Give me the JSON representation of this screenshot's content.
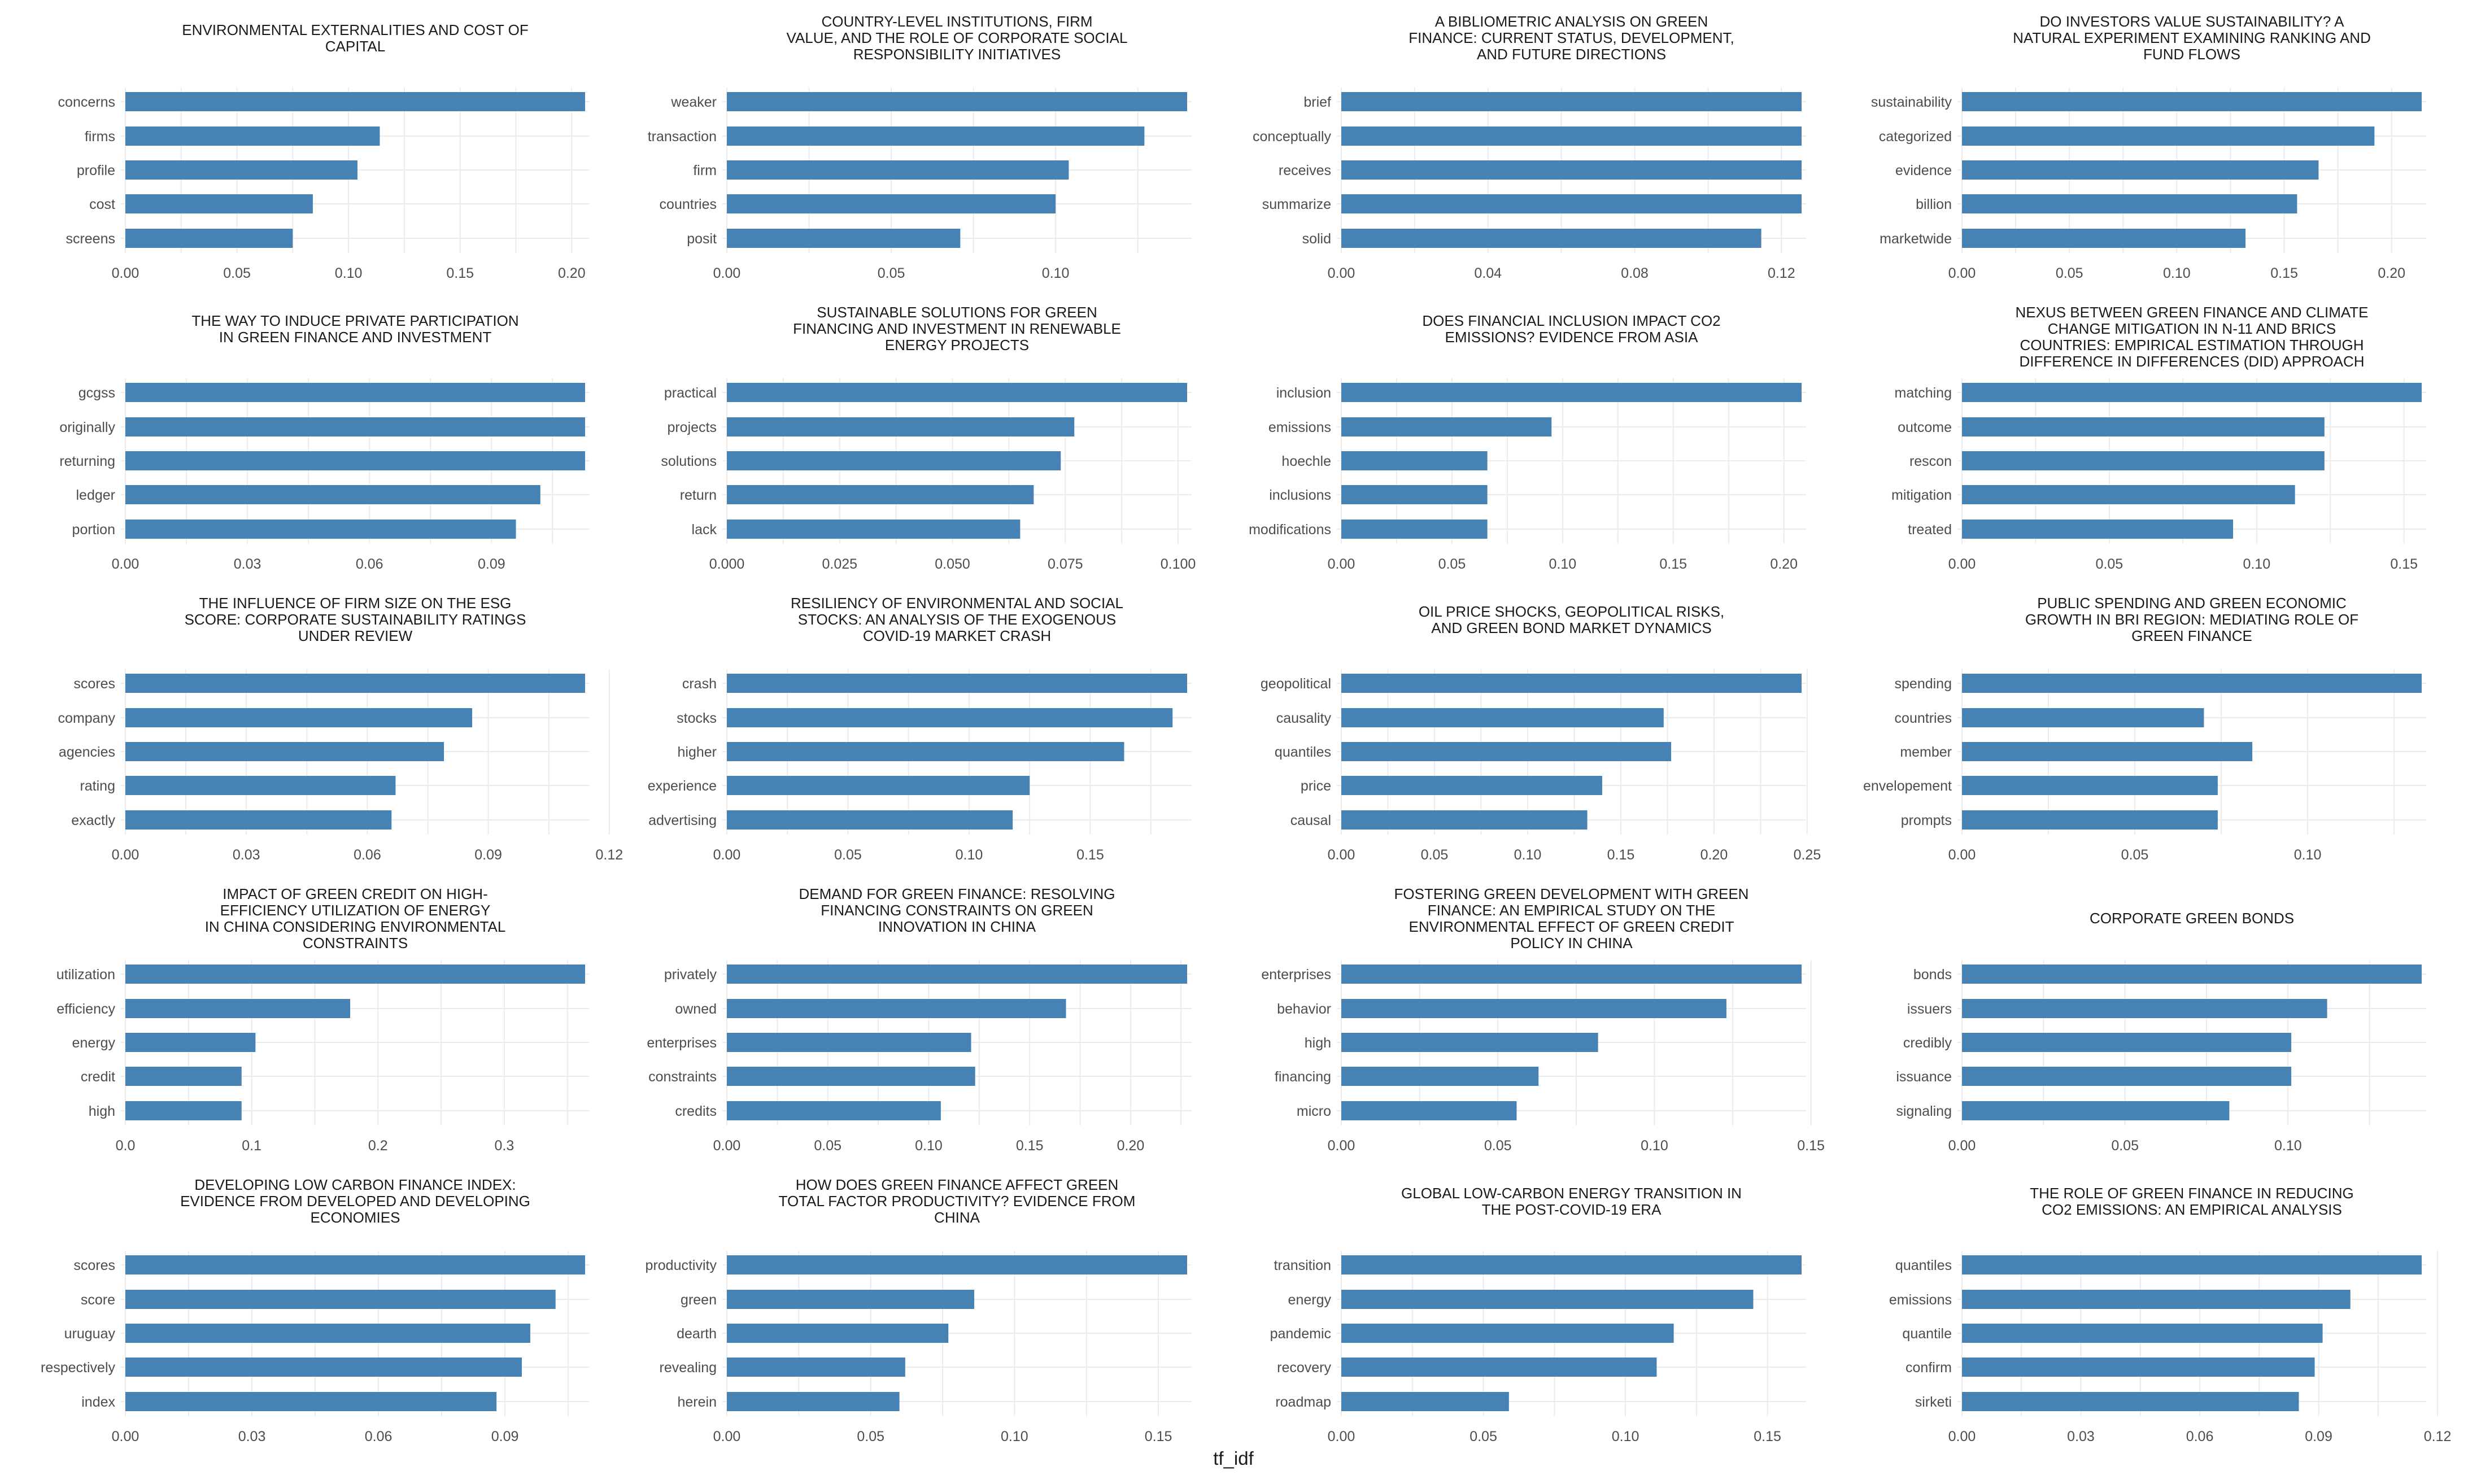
{
  "chart_data": {
    "type": "bar",
    "orientation": "horizontal",
    "grid": true,
    "bar_color": "#4682b4",
    "xlabel": "tf_idf",
    "panels": [
      {
        "title": [
          "ENVIRONMENTAL EXTERNALITIES AND COST OF",
          "CAPITAL"
        ],
        "categories": [
          "concerns",
          "firms",
          "profile",
          "cost",
          "screens"
        ],
        "values": [
          0.206,
          0.114,
          0.104,
          0.084,
          0.075
        ],
        "xlim": [
          0,
          0.206
        ],
        "ticks": [
          0,
          0.05,
          0.1,
          0.15,
          0.2
        ],
        "tick_labels": [
          "0.00",
          "0.05",
          "0.10",
          "0.15",
          "0.20"
        ]
      },
      {
        "title": [
          "COUNTRY-LEVEL INSTITUTIONS, FIRM",
          "VALUE, AND THE ROLE OF CORPORATE SOCIAL",
          "RESPONSIBILITY INITIATIVES"
        ],
        "categories": [
          "weaker",
          "transaction",
          "firm",
          "countries",
          "posit"
        ],
        "values": [
          0.14,
          0.127,
          0.104,
          0.1,
          0.071
        ],
        "xlim": [
          0,
          0.14
        ],
        "ticks": [
          0,
          0.05,
          0.1
        ],
        "tick_labels": [
          "0.00",
          "0.05",
          "0.10"
        ]
      },
      {
        "title": [
          "A BIBLIOMETRIC ANALYSIS ON GREEN",
          "FINANCE: CURRENT STATUS, DEVELOPMENT,",
          "AND FUTURE DIRECTIONS"
        ],
        "categories": [
          "brief",
          "conceptually",
          "receives",
          "summarize",
          "solid"
        ],
        "values": [
          0.1255,
          0.1255,
          0.1255,
          0.1255,
          0.1145
        ],
        "xlim": [
          0,
          0.1255
        ],
        "ticks": [
          0,
          0.04,
          0.08,
          0.12
        ],
        "tick_labels": [
          "0.00",
          "0.04",
          "0.08",
          "0.12"
        ]
      },
      {
        "title": [
          "DO INVESTORS VALUE SUSTAINABILITY? A",
          "NATURAL EXPERIMENT EXAMINING RANKING AND",
          "FUND FLOWS"
        ],
        "categories": [
          "sustainability",
          "categorized",
          "evidence",
          "billion",
          "marketwide"
        ],
        "values": [
          0.214,
          0.192,
          0.166,
          0.156,
          0.132
        ],
        "xlim": [
          0,
          0.214
        ],
        "ticks": [
          0,
          0.05,
          0.1,
          0.15,
          0.2
        ],
        "tick_labels": [
          "0.00",
          "0.05",
          "0.10",
          "0.15",
          "0.20"
        ]
      },
      {
        "title": [
          "THE WAY TO INDUCE PRIVATE PARTICIPATION",
          "IN GREEN FINANCE AND INVESTMENT"
        ],
        "categories": [
          "gcgss",
          "originally",
          "returning",
          "ledger",
          "portion"
        ],
        "values": [
          0.113,
          0.113,
          0.113,
          0.102,
          0.096
        ],
        "xlim": [
          0,
          0.113
        ],
        "ticks": [
          0,
          0.03,
          0.06,
          0.09
        ],
        "tick_labels": [
          "0.00",
          "0.03",
          "0.06",
          "0.09"
        ]
      },
      {
        "title": [
          "SUSTAINABLE SOLUTIONS FOR GREEN",
          "FINANCING AND INVESTMENT IN RENEWABLE",
          "ENERGY PROJECTS"
        ],
        "categories": [
          "practical",
          "projects",
          "solutions",
          "return",
          "lack"
        ],
        "values": [
          0.102,
          0.077,
          0.074,
          0.068,
          0.065
        ],
        "xlim": [
          0,
          0.102
        ],
        "ticks": [
          0,
          0.025,
          0.05,
          0.075,
          0.1
        ],
        "tick_labels": [
          "0.000",
          "0.025",
          "0.050",
          "0.075",
          "0.100"
        ]
      },
      {
        "title": [
          "DOES FINANCIAL INCLUSION IMPACT CO2",
          "EMISSIONS? EVIDENCE FROM ASIA"
        ],
        "categories": [
          "inclusion",
          "emissions",
          "hoechle",
          "inclusions",
          "modifications"
        ],
        "values": [
          0.208,
          0.095,
          0.066,
          0.066,
          0.066
        ],
        "xlim": [
          0,
          0.208
        ],
        "ticks": [
          0,
          0.05,
          0.1,
          0.15,
          0.2
        ],
        "tick_labels": [
          "0.00",
          "0.05",
          "0.10",
          "0.15",
          "0.20"
        ]
      },
      {
        "title": [
          "NEXUS BETWEEN GREEN FINANCE AND CLIMATE",
          "CHANGE MITIGATION IN N-11 AND BRICS",
          "COUNTRIES: EMPIRICAL ESTIMATION THROUGH",
          "DIFFERENCE IN DIFFERENCES (DID) APPROACH"
        ],
        "categories": [
          "matching",
          "outcome",
          "rescon",
          "mitigation",
          "treated"
        ],
        "values": [
          0.156,
          0.123,
          0.123,
          0.113,
          0.092
        ],
        "xlim": [
          0,
          0.156
        ],
        "ticks": [
          0,
          0.05,
          0.1,
          0.15
        ],
        "tick_labels": [
          "0.00",
          "0.05",
          "0.10",
          "0.15"
        ]
      },
      {
        "title": [
          "THE INFLUENCE OF FIRM SIZE ON THE ESG",
          "SCORE: CORPORATE SUSTAINABILITY RATINGS",
          "UNDER REVIEW"
        ],
        "categories": [
          "scores",
          "company",
          "agencies",
          "rating",
          "exactly"
        ],
        "values": [
          0.114,
          0.086,
          0.079,
          0.067,
          0.066
        ],
        "xlim": [
          0,
          0.114
        ],
        "ticks": [
          0,
          0.03,
          0.06,
          0.09,
          0.12
        ],
        "tick_labels": [
          "0.00",
          "0.03",
          "0.06",
          "0.09",
          "0.12"
        ]
      },
      {
        "title": [
          "RESILIENCY OF ENVIRONMENTAL AND SOCIAL",
          "STOCKS: AN ANALYSIS OF THE EXOGENOUS",
          "COVID-19 MARKET CRASH"
        ],
        "categories": [
          "crash",
          "stocks",
          "higher",
          "experience",
          "advertising"
        ],
        "values": [
          0.19,
          0.184,
          0.164,
          0.125,
          0.118
        ],
        "xlim": [
          0,
          0.19
        ],
        "ticks": [
          0,
          0.05,
          0.1,
          0.15
        ],
        "tick_labels": [
          "0.00",
          "0.05",
          "0.10",
          "0.15"
        ]
      },
      {
        "title": [
          "OIL PRICE SHOCKS, GEOPOLITICAL RISKS,",
          "AND GREEN BOND MARKET DYNAMICS"
        ],
        "categories": [
          "geopolitical",
          "causality",
          "quantiles",
          "price",
          "causal"
        ],
        "values": [
          0.247,
          0.173,
          0.177,
          0.14,
          0.132
        ],
        "xlim": [
          0,
          0.247
        ],
        "ticks": [
          0,
          0.05,
          0.1,
          0.15,
          0.2,
          0.25
        ],
        "tick_labels": [
          "0.00",
          "0.05",
          "0.10",
          "0.15",
          "0.20",
          "0.25"
        ]
      },
      {
        "title": [
          "PUBLIC SPENDING AND GREEN ECONOMIC",
          "GROWTH IN BRI REGION: MEDIATING ROLE OF",
          "GREEN FINANCE"
        ],
        "categories": [
          "spending",
          "countries",
          "member",
          "envelopement",
          "prompts"
        ],
        "values": [
          0.133,
          0.07,
          0.084,
          0.074,
          0.074
        ],
        "xlim": [
          0,
          0.133
        ],
        "ticks": [
          0,
          0.05,
          0.1
        ],
        "tick_labels": [
          "0.00",
          "0.05",
          "0.10"
        ]
      },
      {
        "title": [
          "IMPACT OF GREEN CREDIT ON HIGH-",
          "EFFICIENCY UTILIZATION OF ENERGY",
          "IN CHINA CONSIDERING ENVIRONMENTAL",
          "CONSTRAINTS"
        ],
        "categories": [
          "utilization",
          "efficiency",
          "energy",
          "credit",
          "high"
        ],
        "values": [
          0.364,
          0.178,
          0.103,
          0.092,
          0.092
        ],
        "xlim": [
          0,
          0.364
        ],
        "ticks": [
          0,
          0.1,
          0.2,
          0.3
        ],
        "tick_labels": [
          "0.0",
          "0.1",
          "0.2",
          "0.3"
        ]
      },
      {
        "title": [
          "DEMAND FOR GREEN FINANCE: RESOLVING",
          "FINANCING CONSTRAINTS ON GREEN",
          "INNOVATION IN CHINA"
        ],
        "categories": [
          "privately",
          "owned",
          "enterprises",
          "constraints",
          "credits"
        ],
        "values": [
          0.228,
          0.168,
          0.121,
          0.123,
          0.106
        ],
        "xlim": [
          0,
          0.228
        ],
        "ticks": [
          0,
          0.05,
          0.1,
          0.15,
          0.2
        ],
        "tick_labels": [
          "0.00",
          "0.05",
          "0.10",
          "0.15",
          "0.20"
        ]
      },
      {
        "title": [
          "FOSTERING GREEN DEVELOPMENT WITH GREEN",
          "FINANCE: AN EMPIRICAL STUDY ON THE",
          "ENVIRONMENTAL EFFECT OF GREEN CREDIT",
          "POLICY IN CHINA"
        ],
        "categories": [
          "enterprises",
          "behavior",
          "high",
          "financing",
          "micro"
        ],
        "values": [
          0.147,
          0.123,
          0.082,
          0.063,
          0.056
        ],
        "xlim": [
          0,
          0.147
        ],
        "ticks": [
          0,
          0.05,
          0.1,
          0.15
        ],
        "tick_labels": [
          "0.00",
          "0.05",
          "0.10",
          "0.15"
        ]
      },
      {
        "title": [
          "CORPORATE GREEN BONDS"
        ],
        "categories": [
          "bonds",
          "issuers",
          "credibly",
          "issuance",
          "signaling"
        ],
        "values": [
          0.141,
          0.112,
          0.101,
          0.101,
          0.082
        ],
        "xlim": [
          0,
          0.141
        ],
        "ticks": [
          0,
          0.05,
          0.1
        ],
        "tick_labels": [
          "0.00",
          "0.05",
          "0.10"
        ]
      },
      {
        "title": [
          "DEVELOPING LOW CARBON FINANCE INDEX:",
          "EVIDENCE FROM DEVELOPED AND DEVELOPING",
          "ECONOMIES"
        ],
        "categories": [
          "scores",
          "score",
          "uruguay",
          "respectively",
          "index"
        ],
        "values": [
          0.109,
          0.102,
          0.096,
          0.094,
          0.088
        ],
        "xlim": [
          0,
          0.109
        ],
        "ticks": [
          0,
          0.03,
          0.06,
          0.09
        ],
        "tick_labels": [
          "0.00",
          "0.03",
          "0.06",
          "0.09"
        ]
      },
      {
        "title": [
          "HOW DOES GREEN FINANCE AFFECT GREEN",
          "TOTAL FACTOR PRODUCTIVITY? EVIDENCE FROM",
          "CHINA"
        ],
        "categories": [
          "productivity",
          "green",
          "dearth",
          "revealing",
          "herein"
        ],
        "values": [
          0.16,
          0.086,
          0.077,
          0.062,
          0.06
        ],
        "xlim": [
          0,
          0.16
        ],
        "ticks": [
          0,
          0.05,
          0.1,
          0.15
        ],
        "tick_labels": [
          "0.00",
          "0.05",
          "0.10",
          "0.15"
        ]
      },
      {
        "title": [
          "GLOBAL LOW-CARBON ENERGY TRANSITION IN",
          "THE POST-COVID-19 ERA"
        ],
        "categories": [
          "transition",
          "energy",
          "pandemic",
          "recovery",
          "roadmap"
        ],
        "values": [
          0.162,
          0.145,
          0.117,
          0.111,
          0.059
        ],
        "xlim": [
          0,
          0.162
        ],
        "ticks": [
          0,
          0.05,
          0.1,
          0.15
        ],
        "tick_labels": [
          "0.00",
          "0.05",
          "0.10",
          "0.15"
        ]
      },
      {
        "title": [
          "THE ROLE OF GREEN FINANCE IN REDUCING",
          "CO2 EMISSIONS: AN EMPIRICAL ANALYSIS"
        ],
        "categories": [
          "quantiles",
          "emissions",
          "quantile",
          "confirm",
          "sirketi"
        ],
        "values": [
          0.116,
          0.098,
          0.091,
          0.089,
          0.085
        ],
        "xlim": [
          0,
          0.116
        ],
        "ticks": [
          0,
          0.03,
          0.06,
          0.09,
          0.12
        ],
        "tick_labels": [
          "0.00",
          "0.03",
          "0.06",
          "0.09",
          "0.12"
        ]
      }
    ]
  }
}
